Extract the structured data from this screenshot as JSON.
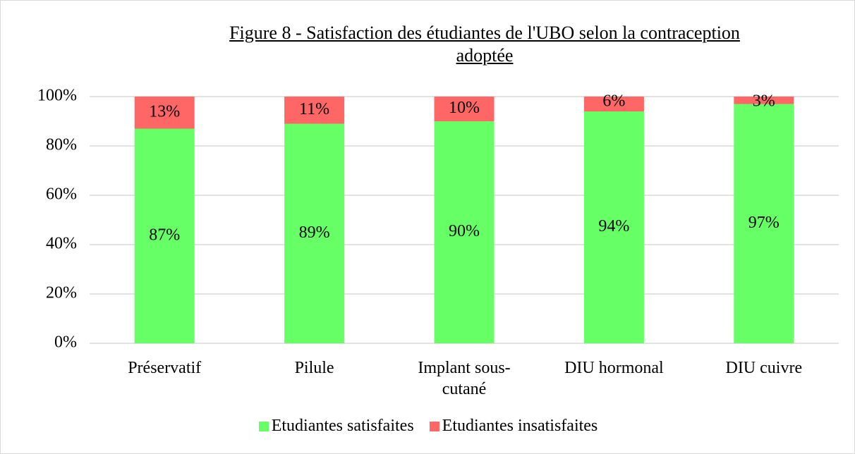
{
  "chart_data": {
    "type": "stacked_bar",
    "title": "Figure 8 - Satisfaction des étudiantes de l'UBO selon la contraception adoptée",
    "categories": [
      "Préservatif",
      "Pilule",
      "Implant sous-cutané",
      "DIU hormonal",
      "DIU cuivre"
    ],
    "series": [
      {
        "name": "Etudiantes satisfaites",
        "color": "#66ff66",
        "values": [
          87,
          89,
          90,
          94,
          97
        ],
        "value_labels": [
          "87%",
          "89%",
          "90%",
          "94%",
          "97%"
        ]
      },
      {
        "name": "Etudiantes insatisfaites",
        "color": "#ff6666",
        "values": [
          13,
          11,
          10,
          6,
          3
        ],
        "value_labels": [
          "13%",
          "11%",
          "10%",
          "6%",
          "3%"
        ]
      }
    ],
    "ylim": [
      0,
      100
    ],
    "yticks": [
      {
        "value": 0,
        "label": "0%"
      },
      {
        "value": 20,
        "label": "20%"
      },
      {
        "value": 40,
        "label": "40%"
      },
      {
        "value": 60,
        "label": "60%"
      },
      {
        "value": 80,
        "label": "80%"
      },
      {
        "value": 100,
        "label": "100%"
      }
    ],
    "grid": true,
    "legend": "bottom"
  }
}
